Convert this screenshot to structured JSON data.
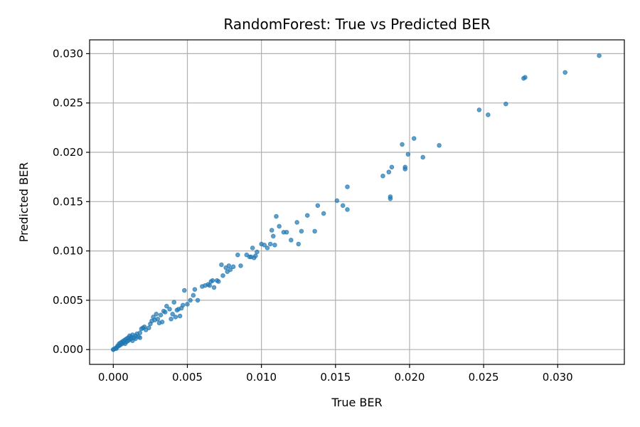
{
  "chart_data": {
    "type": "scatter",
    "title": "RandomForest: True vs Predicted BER",
    "xlabel": "True BER",
    "ylabel": "Predicted BER",
    "xlim": [
      -0.0016,
      0.0345
    ],
    "ylim": [
      -0.0015,
      0.0314
    ],
    "xticks": [
      "0.000",
      "0.005",
      "0.010",
      "0.015",
      "0.020",
      "0.025",
      "0.030"
    ],
    "yticks": [
      "0.000",
      "0.005",
      "0.010",
      "0.015",
      "0.020",
      "0.025",
      "0.030"
    ],
    "grid": true,
    "marker_color": "#1f77b4",
    "marker_alpha": 0.7,
    "series": [
      {
        "points": [
          [
            0.0,
            0.0
          ],
          [
            0.0,
            0.0
          ],
          [
            0.0001,
            0.0001
          ],
          [
            0.0002,
            0.0001
          ],
          [
            0.0002,
            0.0002
          ],
          [
            0.0003,
            0.0003
          ],
          [
            0.0003,
            0.0004
          ],
          [
            0.0004,
            0.0004
          ],
          [
            0.0004,
            0.0006
          ],
          [
            0.0005,
            0.0005
          ],
          [
            0.0005,
            0.0007
          ],
          [
            0.0006,
            0.0006
          ],
          [
            0.0006,
            0.0008
          ],
          [
            0.0007,
            0.0007
          ],
          [
            0.0007,
            0.0009
          ],
          [
            0.0008,
            0.0006
          ],
          [
            0.0008,
            0.001
          ],
          [
            0.0009,
            0.0008
          ],
          [
            0.0009,
            0.0011
          ],
          [
            0.001,
            0.0009
          ],
          [
            0.001,
            0.0012
          ],
          [
            0.0011,
            0.001
          ],
          [
            0.0011,
            0.0014
          ],
          [
            0.0012,
            0.0011
          ],
          [
            0.0012,
            0.0013
          ],
          [
            0.0013,
            0.0009
          ],
          [
            0.0013,
            0.0015
          ],
          [
            0.0014,
            0.0012
          ],
          [
            0.0015,
            0.0014
          ],
          [
            0.0015,
            0.0011
          ],
          [
            0.0016,
            0.0016
          ],
          [
            0.0017,
            0.0013
          ],
          [
            0.0018,
            0.0017
          ],
          [
            0.0018,
            0.0012
          ],
          [
            0.0019,
            0.0021
          ],
          [
            0.002,
            0.0022
          ],
          [
            0.0021,
            0.0023
          ],
          [
            0.0022,
            0.002
          ],
          [
            0.0024,
            0.0022
          ],
          [
            0.0025,
            0.0026
          ],
          [
            0.0026,
            0.0029
          ],
          [
            0.0027,
            0.0033
          ],
          [
            0.0028,
            0.003
          ],
          [
            0.0029,
            0.0036
          ],
          [
            0.003,
            0.0031
          ],
          [
            0.0031,
            0.0027
          ],
          [
            0.0032,
            0.0035
          ],
          [
            0.0033,
            0.0028
          ],
          [
            0.0034,
            0.0039
          ],
          [
            0.0035,
            0.0038
          ],
          [
            0.0036,
            0.0044
          ],
          [
            0.0038,
            0.0041
          ],
          [
            0.0039,
            0.0031
          ],
          [
            0.004,
            0.0036
          ],
          [
            0.0041,
            0.0048
          ],
          [
            0.0042,
            0.0033
          ],
          [
            0.0043,
            0.004
          ],
          [
            0.0044,
            0.0041
          ],
          [
            0.0045,
            0.0034
          ],
          [
            0.0046,
            0.0042
          ],
          [
            0.0047,
            0.0045
          ],
          [
            0.0048,
            0.006
          ],
          [
            0.005,
            0.0046
          ],
          [
            0.0052,
            0.005
          ],
          [
            0.0054,
            0.0055
          ],
          [
            0.0055,
            0.0061
          ],
          [
            0.0057,
            0.005
          ],
          [
            0.006,
            0.0064
          ],
          [
            0.0062,
            0.0065
          ],
          [
            0.0064,
            0.0066
          ],
          [
            0.0065,
            0.0065
          ],
          [
            0.0066,
            0.0069
          ],
          [
            0.0067,
            0.007
          ],
          [
            0.0068,
            0.0063
          ],
          [
            0.007,
            0.007
          ],
          [
            0.0071,
            0.0069
          ],
          [
            0.0073,
            0.0086
          ],
          [
            0.0074,
            0.0075
          ],
          [
            0.0076,
            0.0083
          ],
          [
            0.0077,
            0.0079
          ],
          [
            0.0078,
            0.0085
          ],
          [
            0.0079,
            0.0081
          ],
          [
            0.0081,
            0.0084
          ],
          [
            0.0084,
            0.0096
          ],
          [
            0.0086,
            0.0085
          ],
          [
            0.009,
            0.0096
          ],
          [
            0.0092,
            0.0094
          ],
          [
            0.0093,
            0.0094
          ],
          [
            0.0094,
            0.0103
          ],
          [
            0.0095,
            0.0093
          ],
          [
            0.0096,
            0.0095
          ],
          [
            0.0097,
            0.0099
          ],
          [
            0.01,
            0.0107
          ],
          [
            0.0102,
            0.0106
          ],
          [
            0.0104,
            0.0103
          ],
          [
            0.0106,
            0.0107
          ],
          [
            0.0107,
            0.0121
          ],
          [
            0.0108,
            0.0115
          ],
          [
            0.0109,
            0.0106
          ],
          [
            0.011,
            0.0135
          ],
          [
            0.0112,
            0.0125
          ],
          [
            0.0115,
            0.0119
          ],
          [
            0.0117,
            0.0119
          ],
          [
            0.012,
            0.0111
          ],
          [
            0.0124,
            0.0129
          ],
          [
            0.0125,
            0.0107
          ],
          [
            0.0127,
            0.012
          ],
          [
            0.0131,
            0.0136
          ],
          [
            0.0136,
            0.012
          ],
          [
            0.0138,
            0.0146
          ],
          [
            0.0142,
            0.0138
          ],
          [
            0.0151,
            0.0151
          ],
          [
            0.0155,
            0.0146
          ],
          [
            0.0158,
            0.0142
          ],
          [
            0.0158,
            0.0165
          ],
          [
            0.0182,
            0.0176
          ],
          [
            0.0186,
            0.018
          ],
          [
            0.0187,
            0.0155
          ],
          [
            0.0187,
            0.0153
          ],
          [
            0.0188,
            0.0185
          ],
          [
            0.0195,
            0.0208
          ],
          [
            0.0197,
            0.0183
          ],
          [
            0.0197,
            0.0185
          ],
          [
            0.0199,
            0.0198
          ],
          [
            0.0203,
            0.0214
          ],
          [
            0.0209,
            0.0195
          ],
          [
            0.022,
            0.0207
          ],
          [
            0.0247,
            0.0243
          ],
          [
            0.0253,
            0.0238
          ],
          [
            0.0265,
            0.0249
          ],
          [
            0.0277,
            0.0275
          ],
          [
            0.0278,
            0.0276
          ],
          [
            0.0305,
            0.0281
          ],
          [
            0.0328,
            0.0298
          ]
        ]
      }
    ]
  }
}
